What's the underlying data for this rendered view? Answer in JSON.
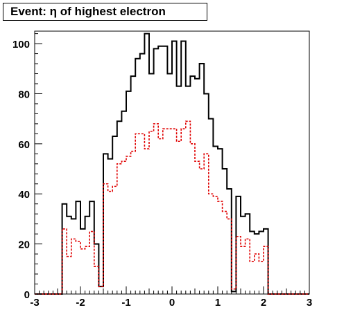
{
  "chart_data": {
    "type": "histogram",
    "title": "Event: η of highest electron",
    "xlabel": "",
    "ylabel": "",
    "xlim": [
      -3,
      3
    ],
    "ylim": [
      0,
      105
    ],
    "x_ticks": [
      -3,
      -2,
      -1,
      0,
      1,
      2,
      3
    ],
    "x_tick_labels": [
      "-3",
      "-2",
      "-1",
      "0",
      "1",
      "2",
      "3"
    ],
    "y_ticks": [
      0,
      20,
      40,
      60,
      80,
      100
    ],
    "y_tick_labels": [
      "0",
      "20",
      "40",
      "60",
      "80",
      "100"
    ],
    "grid": false,
    "legend": "none",
    "bin_edges": [
      -3.0,
      -2.9,
      -2.8,
      -2.7,
      -2.6,
      -2.5,
      -2.4,
      -2.3,
      -2.2,
      -2.1,
      -2.0,
      -1.9,
      -1.8,
      -1.7,
      -1.6,
      -1.5,
      -1.4,
      -1.3,
      -1.2,
      -1.1,
      -1.0,
      -0.9,
      -0.8,
      -0.7,
      -0.6,
      -0.5,
      -0.4,
      -0.3,
      -0.2,
      -0.1,
      0.0,
      0.1,
      0.2,
      0.3,
      0.4,
      0.5,
      0.6,
      0.7,
      0.8,
      0.9,
      1.0,
      1.1,
      1.2,
      1.3,
      1.4,
      1.5,
      1.6,
      1.7,
      1.8,
      1.9,
      2.0,
      2.1,
      2.2,
      2.3,
      2.4,
      2.5,
      2.6,
      2.7,
      2.8,
      2.9,
      3.0
    ],
    "series": [
      {
        "color": "#000000",
        "line_style": "solid",
        "values": [
          0,
          0,
          0,
          0,
          0,
          0,
          36,
          31,
          30,
          37,
          26,
          31,
          37,
          20,
          3,
          56,
          54,
          63,
          69,
          73,
          81,
          87,
          94,
          96,
          104,
          88,
          98,
          99,
          99,
          88,
          101,
          83,
          101,
          83,
          87,
          86,
          92,
          80,
          70,
          59,
          58,
          50,
          42,
          1,
          39,
          31,
          32,
          25,
          24,
          25,
          26,
          0,
          0,
          0,
          0,
          0,
          0,
          0,
          0,
          0
        ]
      },
      {
        "color": "#e00000",
        "line_style": "dashed",
        "values": [
          0,
          0,
          0,
          0,
          0,
          0,
          26,
          15,
          22,
          21,
          18,
          19,
          25,
          11,
          3,
          44,
          41,
          43,
          52,
          53,
          55,
          57,
          64,
          64,
          58,
          65,
          68,
          62,
          66,
          66,
          66,
          61,
          66,
          69,
          60,
          53,
          50,
          56,
          40,
          39,
          37,
          33,
          30,
          2,
          23,
          19,
          22,
          13,
          16,
          13,
          19,
          0,
          0,
          0,
          0,
          0,
          0,
          0,
          0,
          0
        ]
      }
    ]
  }
}
